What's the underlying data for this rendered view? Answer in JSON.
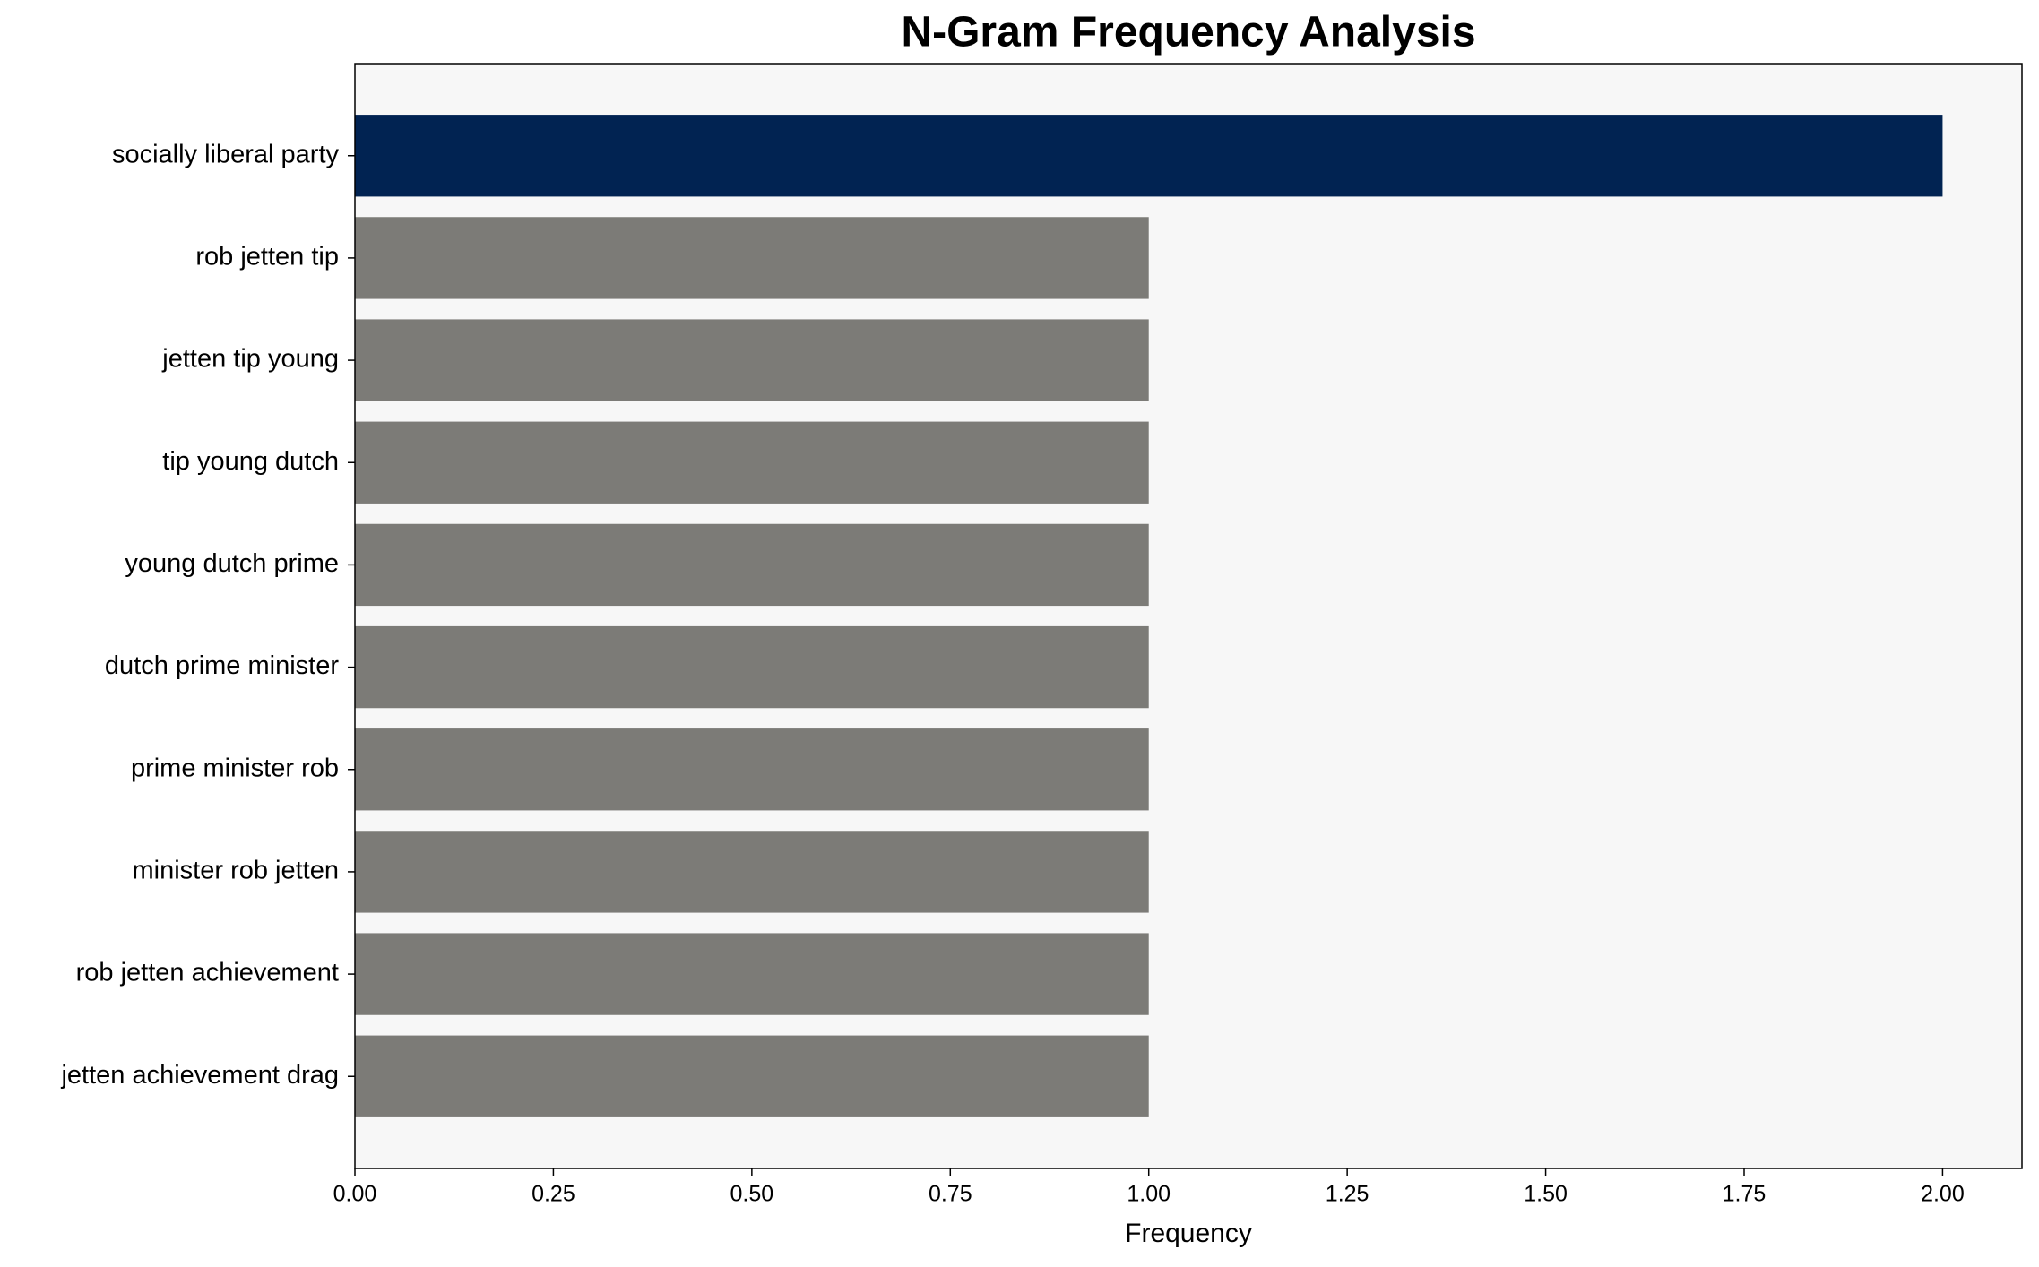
{
  "chart_data": {
    "type": "barh",
    "title": "N-Gram Frequency Analysis",
    "xlabel": "Frequency",
    "categories": [
      "socially liberal party",
      "rob jetten tip",
      "jetten tip young",
      "tip young dutch",
      "young dutch prime",
      "dutch prime minister",
      "prime minister rob",
      "minister rob jetten",
      "rob jetten achievement",
      "jetten achievement drag"
    ],
    "values": [
      2,
      1,
      1,
      1,
      1,
      1,
      1,
      1,
      1,
      1
    ],
    "colors": [
      "#012352",
      "#7c7b77",
      "#7c7b77",
      "#7c7b77",
      "#7c7b77",
      "#7c7b77",
      "#7c7b77",
      "#7c7b77",
      "#7c7b77",
      "#7c7b77"
    ],
    "xlim": [
      0,
      2.1
    ],
    "xticks": [
      {
        "value": 0,
        "label": "0.00"
      },
      {
        "value": 0.25,
        "label": "0.25"
      },
      {
        "value": 0.5,
        "label": "0.50"
      },
      {
        "value": 0.75,
        "label": "0.75"
      },
      {
        "value": 1,
        "label": "1.00"
      },
      {
        "value": 1.25,
        "label": "1.25"
      },
      {
        "value": 1.5,
        "label": "1.50"
      },
      {
        "value": 1.75,
        "label": "1.75"
      },
      {
        "value": 2,
        "label": "2.00"
      }
    ],
    "background": "#f7f7f7"
  }
}
